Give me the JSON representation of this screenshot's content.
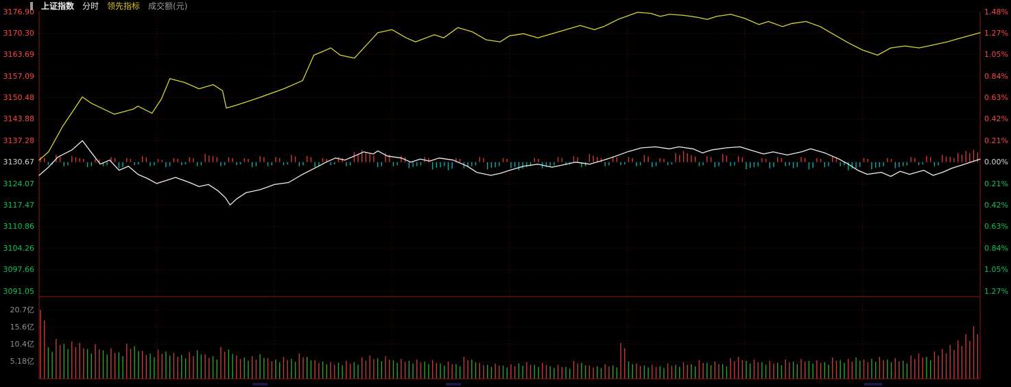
{
  "header": {
    "title": "上证指数",
    "tab_minute": "分时",
    "tab_leading": "领先指标",
    "turnover_label": "成交额(元)"
  },
  "axes": {
    "price_left": [
      "3176.90",
      "3170.30",
      "3163.69",
      "3157.09",
      "3150.48",
      "3143.88",
      "3137.28",
      "3130.67",
      "3124.07",
      "3117.47",
      "3110.86",
      "3104.26",
      "3097.66",
      "3091.05"
    ],
    "pct_right": [
      "1.48%",
      "1.27%",
      "1.05%",
      "0.84%",
      "0.63%",
      "0.42%",
      "0.21%",
      "0.00%",
      "0.21%",
      "0.42%",
      "0.63%",
      "0.84%",
      "1.05%",
      "1.27%"
    ],
    "volume_left": [
      "20.7亿",
      "15.6亿",
      "10.4亿",
      "5.18亿"
    ]
  },
  "colors": {
    "up_red": "#ff4545",
    "down_green": "#12c05a",
    "grid": "#5e1212",
    "border": "#871c1c",
    "yellow_line": "#d6d62e",
    "white_line": "#eeeeee",
    "tick_pos": "#d03a3a",
    "tick_neg": "#00b0b0",
    "vol_pos": "#c23c3c",
    "vol_neg": "#2aa52a"
  },
  "chart_data": {
    "type": "line",
    "title": "上证指数 分时 (intraday with 领先指标 and 成交额)",
    "prev_close": 3130.67,
    "session_minutes": 240,
    "x_unit": "fraction_of_session",
    "price_axis_ticks": [
      3176.9,
      3170.3,
      3163.69,
      3157.09,
      3150.48,
      3143.88,
      3137.28,
      3130.67,
      3124.07,
      3117.47,
      3110.86,
      3104.26,
      3097.66,
      3091.05
    ],
    "pct_axis_range": [
      -1.2656,
      1.4766
    ],
    "volume_axis": [
      20.7,
      15.6,
      10.4,
      5.18
    ],
    "volume_max": 23.3,
    "grid": true,
    "series": [
      {
        "name": "leading-indicator-yellow",
        "color": "#d6d62e",
        "x": [
          0.0,
          0.01,
          0.025,
          0.046,
          0.055,
          0.08,
          0.1,
          0.105,
          0.12,
          0.13,
          0.139,
          0.155,
          0.17,
          0.185,
          0.195,
          0.199,
          0.21,
          0.23,
          0.26,
          0.28,
          0.292,
          0.3,
          0.31,
          0.32,
          0.335,
          0.36,
          0.375,
          0.39,
          0.4,
          0.42,
          0.43,
          0.445,
          0.46,
          0.475,
          0.49,
          0.5,
          0.515,
          0.53,
          0.545,
          0.56,
          0.575,
          0.59,
          0.6,
          0.615,
          0.636,
          0.65,
          0.66,
          0.67,
          0.685,
          0.7,
          0.71,
          0.72,
          0.735,
          0.75,
          0.765,
          0.775,
          0.79,
          0.8,
          0.815,
          0.83,
          0.845,
          0.86,
          0.875,
          0.891,
          0.905,
          0.92,
          0.935,
          0.95,
          0.965,
          0.98,
          1.0
        ],
        "pct": [
          0.02,
          0.1,
          0.35,
          0.64,
          0.58,
          0.47,
          0.52,
          0.55,
          0.48,
          0.62,
          0.82,
          0.78,
          0.72,
          0.76,
          0.7,
          0.53,
          0.56,
          0.62,
          0.72,
          0.8,
          1.05,
          1.08,
          1.12,
          1.05,
          1.02,
          1.27,
          1.3,
          1.22,
          1.18,
          1.25,
          1.22,
          1.32,
          1.28,
          1.2,
          1.18,
          1.24,
          1.26,
          1.22,
          1.26,
          1.3,
          1.34,
          1.3,
          1.33,
          1.4,
          1.47,
          1.46,
          1.43,
          1.45,
          1.44,
          1.42,
          1.4,
          1.43,
          1.45,
          1.41,
          1.35,
          1.38,
          1.33,
          1.36,
          1.38,
          1.33,
          1.25,
          1.17,
          1.1,
          1.05,
          1.12,
          1.14,
          1.12,
          1.15,
          1.18,
          1.22,
          1.27
        ]
      },
      {
        "name": "price-white",
        "color": "#eeeeee",
        "x": [
          0.0,
          0.01,
          0.02,
          0.035,
          0.046,
          0.055,
          0.065,
          0.075,
          0.085,
          0.095,
          0.105,
          0.115,
          0.125,
          0.135,
          0.145,
          0.16,
          0.17,
          0.18,
          0.19,
          0.198,
          0.203,
          0.21,
          0.22,
          0.235,
          0.25,
          0.265,
          0.28,
          0.295,
          0.305,
          0.315,
          0.325,
          0.335,
          0.345,
          0.355,
          0.36,
          0.37,
          0.385,
          0.395,
          0.405,
          0.415,
          0.425,
          0.44,
          0.455,
          0.465,
          0.48,
          0.49,
          0.5,
          0.515,
          0.53,
          0.545,
          0.555,
          0.57,
          0.585,
          0.6,
          0.61,
          0.625,
          0.64,
          0.655,
          0.67,
          0.68,
          0.695,
          0.705,
          0.715,
          0.73,
          0.745,
          0.755,
          0.77,
          0.78,
          0.795,
          0.81,
          0.82,
          0.835,
          0.85,
          0.86,
          0.87,
          0.88,
          0.895,
          0.905,
          0.915,
          0.925,
          0.94,
          0.95,
          0.96,
          0.97,
          0.98,
          0.99,
          1.0
        ],
        "pct": [
          -0.13,
          -0.05,
          0.05,
          0.12,
          0.21,
          0.1,
          -0.02,
          0.02,
          -0.08,
          -0.04,
          -0.12,
          -0.16,
          -0.21,
          -0.18,
          -0.15,
          -0.2,
          -0.24,
          -0.22,
          -0.28,
          -0.35,
          -0.42,
          -0.36,
          -0.3,
          -0.27,
          -0.22,
          -0.2,
          -0.12,
          -0.05,
          0.0,
          0.04,
          0.02,
          0.06,
          0.1,
          0.08,
          0.11,
          0.06,
          0.04,
          0.0,
          0.03,
          0.01,
          0.04,
          0.02,
          -0.04,
          -0.1,
          -0.13,
          -0.11,
          -0.08,
          -0.04,
          -0.02,
          -0.05,
          -0.03,
          0.0,
          -0.02,
          0.02,
          0.05,
          0.1,
          0.14,
          0.15,
          0.13,
          0.15,
          0.13,
          0.09,
          0.12,
          0.14,
          0.15,
          0.12,
          0.08,
          0.1,
          0.07,
          0.1,
          0.13,
          0.09,
          0.03,
          -0.02,
          -0.08,
          -0.12,
          -0.1,
          -0.14,
          -0.09,
          -0.12,
          -0.08,
          -0.13,
          -0.1,
          -0.06,
          -0.03,
          0.0,
          0.03
        ]
      },
      {
        "name": "tick-bars",
        "unit": "0.01%",
        "pos_color": "#d03a3a",
        "neg_color": "#00b0b0",
        "values": [
          5,
          -3,
          7,
          -4,
          6,
          4,
          -5,
          3,
          -4,
          5,
          -6,
          4,
          -3,
          6,
          -4,
          3,
          -5,
          4,
          -3,
          5,
          -4,
          8,
          6,
          -4,
          5,
          -3,
          4,
          -5,
          6,
          -4,
          5,
          -3,
          7,
          -4,
          6,
          -5,
          4,
          -3,
          5,
          -4,
          10,
          12,
          8,
          -5,
          9,
          -4,
          6,
          -6,
          -4,
          5,
          -7,
          -5,
          -8,
          4,
          -6,
          -4,
          5,
          -7,
          -5,
          4,
          -6,
          -8,
          -5,
          4,
          -6,
          -4,
          5,
          -3,
          6,
          -5,
          8,
          5,
          -4,
          6,
          -3,
          5,
          -4,
          7,
          -5,
          4,
          -3,
          9,
          11,
          7,
          -4,
          6,
          -5,
          8,
          -4,
          6,
          -7,
          -5,
          4,
          -6,
          5,
          -4,
          -6,
          5,
          -7,
          4,
          -5,
          6,
          -4,
          -8,
          -6,
          4,
          -7,
          -5,
          4,
          -6,
          -4,
          5,
          -3,
          6,
          -4,
          7,
          5,
          9,
          11,
          12
        ]
      },
      {
        "name": "turnover-bars",
        "unit": "亿",
        "pos_color": "#c23c3c",
        "neg_color": "#2aa52a",
        "values": [
          20.7,
          -9.5,
          12.0,
          -10.5,
          11.2,
          10.8,
          -9.0,
          10.4,
          -8.6,
          9.2,
          -8.0,
          10.6,
          -9.8,
          8.4,
          -7.6,
          8.8,
          -8.2,
          7.8,
          -7.2,
          8.0,
          -8.6,
          7.4,
          -6.8,
          9.6,
          -8.8,
          7.0,
          -6.4,
          6.8,
          -7.4,
          6.2,
          -5.8,
          6.6,
          -6.0,
          7.6,
          -6.6,
          5.6,
          -5.2,
          5.0,
          -4.8,
          5.4,
          -5.0,
          6.4,
          7.0,
          -6.2,
          6.8,
          -5.6,
          6.0,
          -5.4,
          5.8,
          -5.2,
          5.6,
          -4.6,
          5.2,
          -4.4,
          6.6,
          -5.8,
          4.8,
          -4.2,
          4.6,
          -4.0,
          4.4,
          -4.6,
          5.0,
          -4.2,
          4.8,
          -3.8,
          4.2,
          -3.6,
          5.4,
          -4.8,
          4.0,
          -3.8,
          4.4,
          -4.0,
          10.8,
          -5.2,
          4.6,
          -4.0,
          4.2,
          -3.8,
          4.6,
          -4.2,
          5.0,
          -4.4,
          5.6,
          -4.8,
          5.2,
          -4.4,
          6.2,
          6.6,
          -5.4,
          5.8,
          -5.0,
          5.4,
          -4.8,
          5.8,
          -5.2,
          6.0,
          -5.4,
          5.6,
          -5.0,
          6.4,
          -5.6,
          6.0,
          -6.4,
          5.8,
          -6.0,
          6.6,
          -5.8,
          6.2,
          -5.4,
          7.0,
          7.6,
          -6.6,
          8.2,
          9.0,
          10.2,
          11.6,
          13.4,
          15.8
        ]
      }
    ]
  }
}
